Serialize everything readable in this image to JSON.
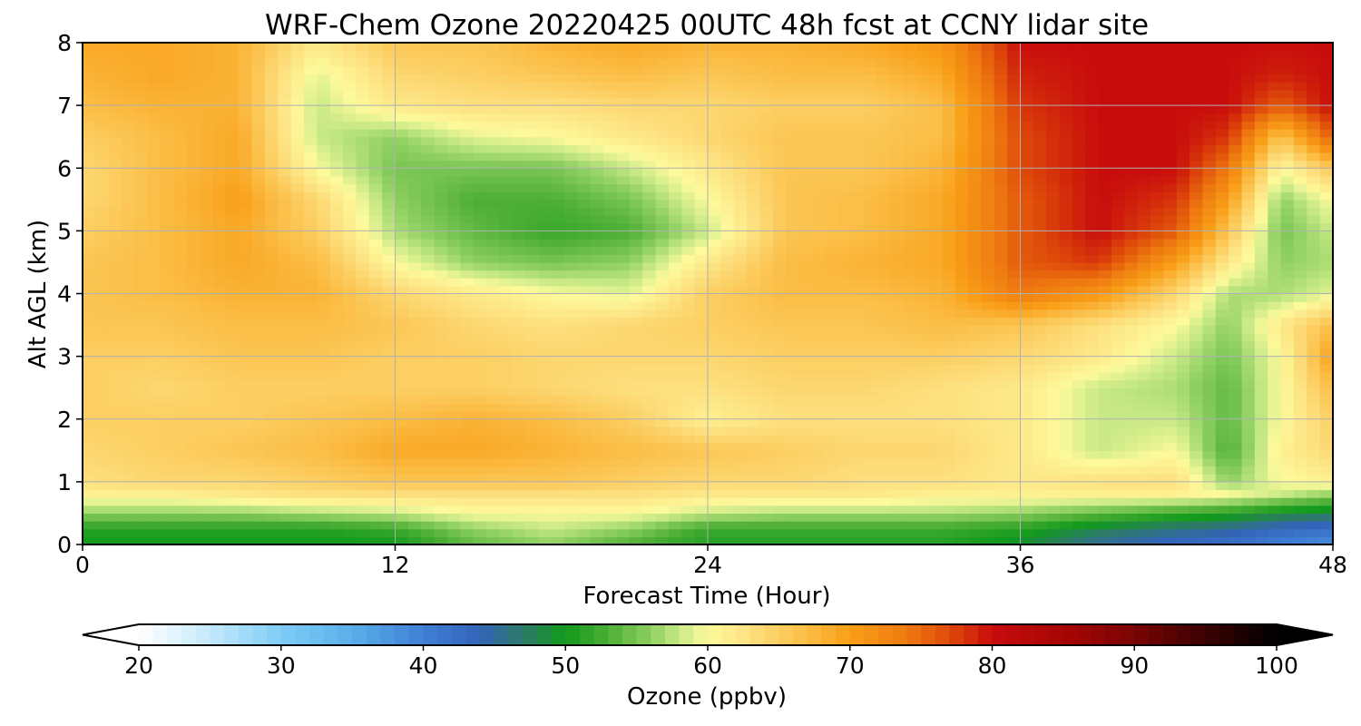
{
  "chart_data": {
    "type": "heatmap",
    "title": "WRF-Chem Ozone  20220425 00UTC 48h fcst at CCNY lidar site",
    "xlabel": "Forecast Time (Hour)",
    "ylabel": "Alt AGL (km)",
    "xlim": [
      0,
      48
    ],
    "ylim": [
      0,
      8
    ],
    "x_ticks": [
      0,
      12,
      24,
      36,
      48
    ],
    "y_ticks": [
      0,
      1,
      2,
      3,
      4,
      5,
      6,
      7,
      8
    ],
    "grid": true,
    "colorbar": {
      "label": "Ozone  (ppbv)",
      "range": [
        20,
        100
      ],
      "ticks": [
        20,
        30,
        40,
        50,
        60,
        70,
        80,
        90,
        100
      ],
      "extend": "both",
      "orientation": "horizontal",
      "colors": [
        {
          "v": 20,
          "c": "#ffffff"
        },
        {
          "v": 25,
          "c": "#c5e9fb"
        },
        {
          "v": 30,
          "c": "#7fcdf7"
        },
        {
          "v": 35,
          "c": "#5aaeea"
        },
        {
          "v": 40,
          "c": "#3f7fd6"
        },
        {
          "v": 44,
          "c": "#3463b8"
        },
        {
          "v": 47,
          "c": "#2e7a6a"
        },
        {
          "v": 50,
          "c": "#119a1c"
        },
        {
          "v": 53,
          "c": "#4cae35"
        },
        {
          "v": 56,
          "c": "#8fd062"
        },
        {
          "v": 58,
          "c": "#c8e986"
        },
        {
          "v": 60,
          "c": "#fdfa9c"
        },
        {
          "v": 63,
          "c": "#fde07f"
        },
        {
          "v": 67,
          "c": "#fbbd45"
        },
        {
          "v": 70,
          "c": "#f99e17"
        },
        {
          "v": 74,
          "c": "#ee7a10"
        },
        {
          "v": 77,
          "c": "#de4a0a"
        },
        {
          "v": 80,
          "c": "#c80c0c"
        },
        {
          "v": 85,
          "c": "#a80505"
        },
        {
          "v": 90,
          "c": "#7a0404"
        },
        {
          "v": 95,
          "c": "#3a0202"
        },
        {
          "v": 100,
          "c": "#000000"
        }
      ]
    },
    "z_altitudes_km": [
      0,
      0.25,
      0.5,
      0.8,
      1,
      1.5,
      2,
      2.5,
      3,
      3.5,
      4,
      4.5,
      5,
      5.5,
      6,
      6.5,
      7,
      7.5,
      8
    ],
    "z_times_hour": [
      0,
      3,
      6,
      9,
      12,
      15,
      18,
      21,
      24,
      27,
      30,
      33,
      36,
      39,
      42,
      44,
      46,
      48
    ],
    "z_values_ppbv": [
      [
        50,
        50,
        50,
        50,
        50,
        54,
        56,
        53,
        51,
        51,
        51,
        51,
        49,
        45,
        43,
        42,
        40,
        38
      ],
      [
        51,
        51,
        51,
        51,
        52,
        56,
        58,
        56,
        52,
        52,
        52,
        52,
        51,
        48,
        46,
        45,
        43,
        42
      ],
      [
        56,
        56,
        56,
        57,
        58,
        60,
        60,
        60,
        58,
        57,
        57,
        57,
        56,
        54,
        52,
        51,
        49,
        48
      ],
      [
        61,
        61,
        62,
        63,
        63,
        63,
        63,
        63,
        62,
        62,
        62,
        61,
        61,
        61,
        61,
        60,
        58,
        56
      ],
      [
        63,
        64,
        64,
        65,
        66,
        66,
        66,
        65,
        64,
        64,
        63,
        63,
        62,
        63,
        63,
        56,
        60,
        61
      ],
      [
        64,
        65,
        66,
        67,
        69,
        69,
        68,
        67,
        66,
        65,
        64,
        64,
        62,
        58,
        60,
        53,
        61,
        64
      ],
      [
        65,
        65,
        65,
        66,
        67,
        68,
        67,
        65,
        61,
        63,
        63,
        63,
        62,
        58,
        58,
        54,
        60,
        65
      ],
      [
        65,
        64,
        65,
        65,
        65,
        65,
        64,
        63,
        63,
        64,
        64,
        63,
        62,
        58,
        57,
        54,
        60,
        67
      ],
      [
        65,
        65,
        66,
        66,
        65,
        65,
        64,
        64,
        64,
        65,
        65,
        65,
        64,
        62,
        58,
        55,
        60,
        70
      ],
      [
        66,
        66,
        67,
        67,
        66,
        64,
        63,
        64,
        65,
        66,
        66,
        67,
        66,
        63,
        60,
        56,
        62,
        67
      ],
      [
        66,
        67,
        68,
        68,
        64,
        62,
        60,
        59,
        65,
        67,
        67,
        68,
        74,
        71,
        64,
        57,
        57,
        59
      ],
      [
        66,
        67,
        69,
        67,
        60,
        56,
        55,
        56,
        62,
        67,
        68,
        69,
        76,
        78,
        70,
        62,
        56,
        57
      ],
      [
        65,
        67,
        69,
        65,
        57,
        54,
        52,
        53,
        58,
        66,
        67,
        69,
        76,
        80,
        76,
        66,
        55,
        58
      ],
      [
        64,
        67,
        70,
        64,
        56,
        53,
        53,
        55,
        60,
        66,
        67,
        69,
        76,
        80,
        78,
        70,
        56,
        60
      ],
      [
        64,
        67,
        69,
        60,
        55,
        55,
        55,
        58,
        62,
        66,
        66,
        68,
        77,
        80,
        80,
        74,
        60,
        66
      ],
      [
        65,
        67,
        69,
        58,
        56,
        59,
        60,
        62,
        64,
        66,
        66,
        67,
        77,
        80,
        80,
        78,
        66,
        76
      ],
      [
        67,
        68,
        68,
        58,
        62,
        63,
        63,
        64,
        64,
        65,
        65,
        67,
        78,
        80,
        80,
        80,
        76,
        80
      ],
      [
        68,
        69,
        68,
        59,
        64,
        65,
        66,
        67,
        66,
        67,
        67,
        69,
        79,
        80,
        80,
        80,
        79,
        80
      ],
      [
        69,
        69,
        68,
        62,
        66,
        66,
        68,
        69,
        68,
        68,
        69,
        71,
        80,
        80,
        80,
        80,
        80,
        80
      ]
    ]
  }
}
